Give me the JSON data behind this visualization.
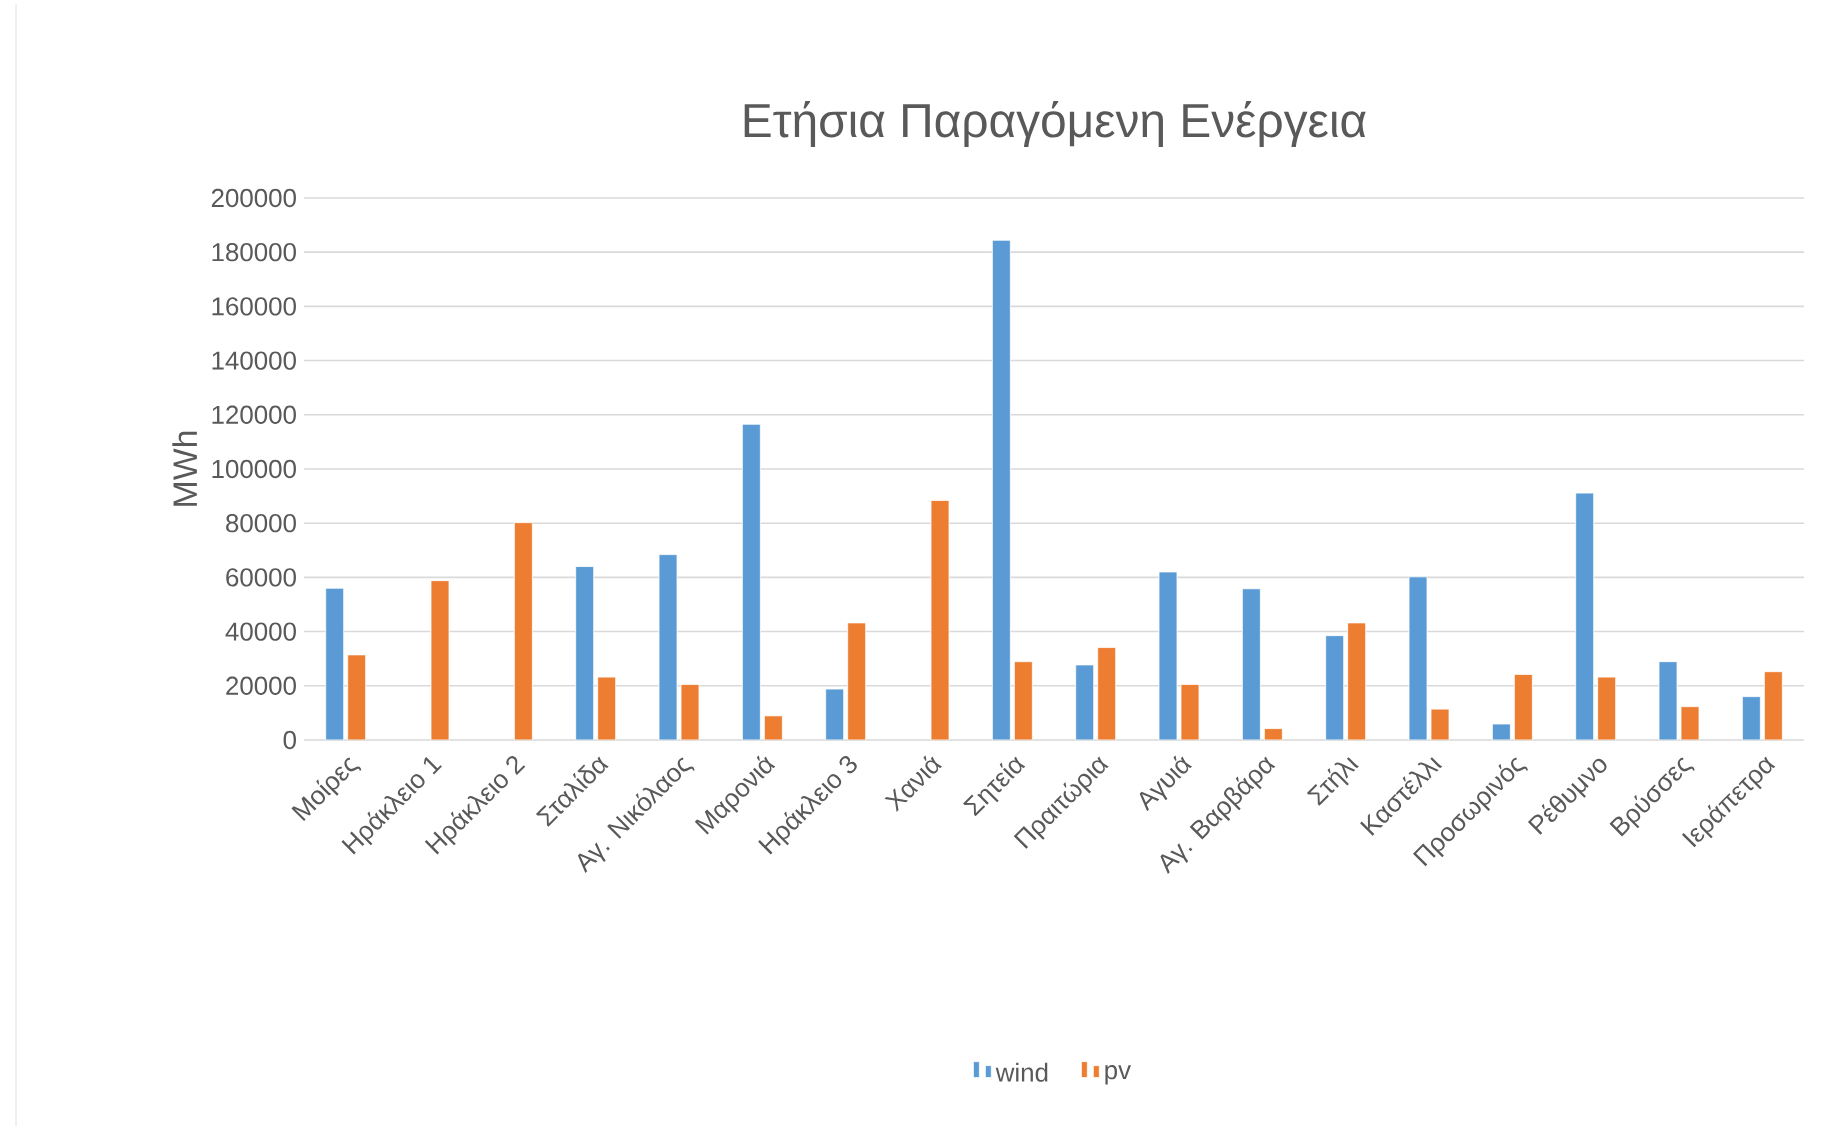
{
  "chart_data": {
    "type": "bar",
    "title": "Ετήσια Παραγόμενη Ενέργεια",
    "ylabel": "MWh",
    "categories": [
      "Μοίρες",
      "Ηράκλειο 1",
      "Ηράκλειο 2",
      "Σταλίδα",
      "Αγ. Νικόλαος",
      "Μαρονιά",
      "Ηράκλειο 3",
      "Χανιά",
      "Σητεία",
      "Πραιτώρια",
      "Αγυιά",
      "Αγ. Βαρβάρα",
      "Στήλι",
      "Καστέλλι",
      "Προσωρινός",
      "Ρέθυμνο",
      "Βρύσσες",
      "Ιεράπετρα"
    ],
    "series": [
      {
        "name": "wind",
        "color": "#5b9bd5",
        "values": [
          56000,
          null,
          null,
          64000,
          68400,
          116500,
          18800,
          null,
          184400,
          27700,
          62000,
          55800,
          38500,
          60200,
          5900,
          91100,
          28900,
          16000
        ]
      },
      {
        "name": "pv",
        "color": "#ed7d31",
        "values": [
          31400,
          58800,
          80200,
          23200,
          20500,
          8900,
          43200,
          88400,
          28900,
          34100,
          20500,
          4200,
          43200,
          11400,
          24200,
          23200,
          12300,
          25200
        ]
      }
    ],
    "ylim": [
      0,
      200000
    ],
    "yticks": [
      0,
      20000,
      40000,
      60000,
      80000,
      100000,
      120000,
      140000,
      160000,
      180000,
      200000
    ],
    "grid": "y",
    "legend": "bottom"
  }
}
